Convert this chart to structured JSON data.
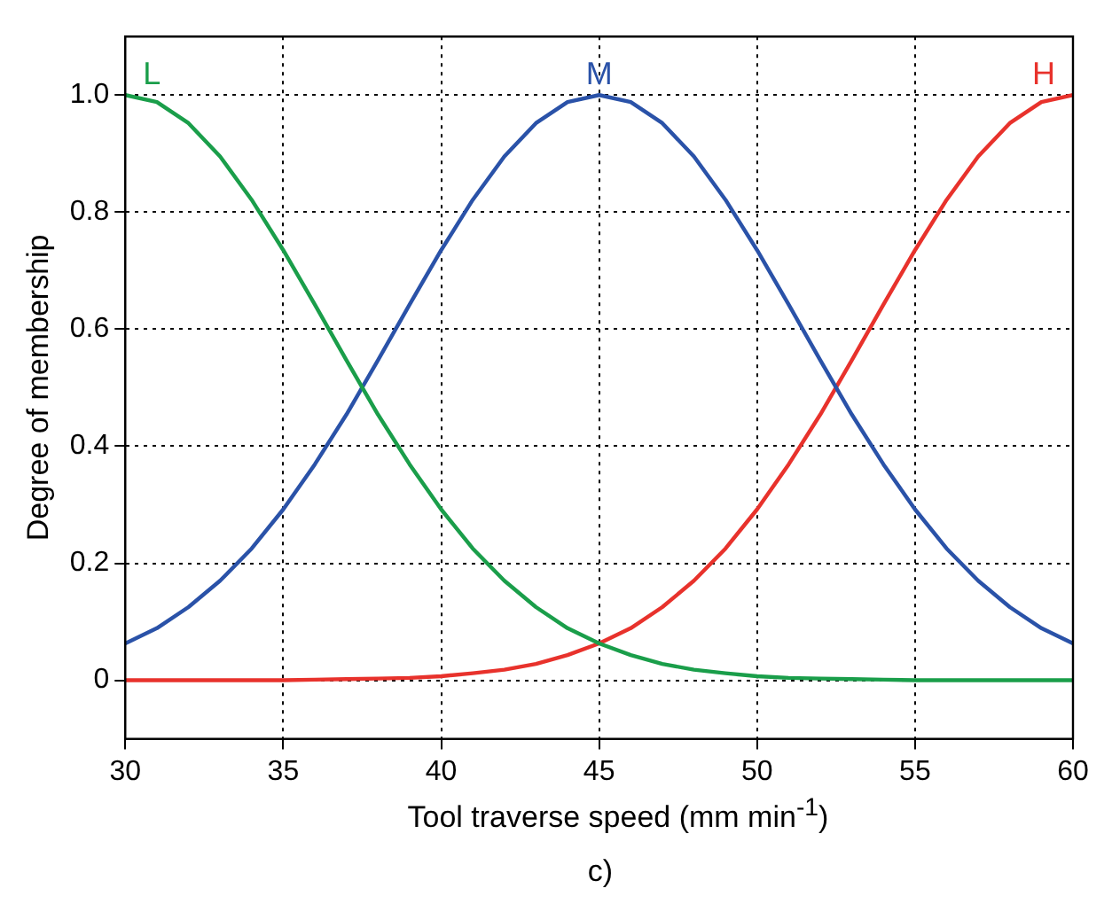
{
  "chart_data": {
    "type": "line",
    "xlabel": "Tool traverse speed (mm min$^{-1}$)",
    "ylabel": "Degree of membership",
    "x": [
      30,
      31,
      32,
      33,
      34,
      35,
      36,
      37,
      38,
      39,
      40,
      41,
      42,
      43,
      44,
      45,
      46,
      47,
      48,
      49,
      50,
      51,
      52,
      53,
      54,
      55,
      56,
      57,
      58,
      59,
      60
    ],
    "series": [
      {
        "name": "L",
        "color": "#1a9e4a",
        "values": [
          1,
          0.988,
          0.952,
          0.895,
          0.821,
          0.735,
          0.642,
          0.547,
          0.454,
          0.369,
          0.292,
          0.225,
          0.17,
          0.125,
          0.089,
          0.063,
          0.043,
          0.028,
          0.018,
          0.012,
          0.007,
          0.004,
          0.003,
          0.002,
          0.001,
          0,
          0,
          0,
          0,
          0,
          0
        ]
      },
      {
        "name": "M",
        "color": "#2a52a8",
        "values": [
          0.063,
          0.089,
          0.125,
          0.17,
          0.225,
          0.292,
          0.369,
          0.454,
          0.547,
          0.642,
          0.735,
          0.821,
          0.895,
          0.952,
          0.988,
          1,
          0.988,
          0.952,
          0.895,
          0.821,
          0.735,
          0.642,
          0.547,
          0.454,
          0.369,
          0.292,
          0.225,
          0.17,
          0.125,
          0.089,
          0.063
        ]
      },
      {
        "name": "H",
        "color": "#e8322c",
        "values": [
          0,
          0,
          0,
          0,
          0,
          0,
          0.001,
          0.002,
          0.003,
          0.004,
          0.007,
          0.012,
          0.018,
          0.028,
          0.043,
          0.063,
          0.089,
          0.125,
          0.17,
          0.225,
          0.292,
          0.369,
          0.454,
          0.547,
          0.642,
          0.735,
          0.821,
          0.895,
          0.952,
          0.988,
          1
        ]
      }
    ],
    "xlim": [
      30,
      60
    ],
    "xticks": [
      30,
      35,
      40,
      45,
      50,
      55,
      60
    ],
    "ylim": [
      -0.1,
      1.1
    ],
    "yticks": [
      0,
      0.2,
      0.4,
      0.6,
      0.8,
      {
        "value": 1,
        "label": "1.0"
      }
    ],
    "grid": true,
    "legend": false,
    "marker": "none",
    "line_style": "solid",
    "annotations": [
      "c)"
    ]
  }
}
